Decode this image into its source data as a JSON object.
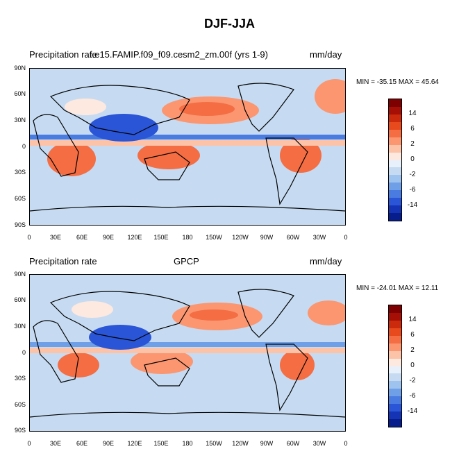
{
  "figure": {
    "title": "DJF-JJA",
    "units": "mm/day"
  },
  "panels": [
    {
      "left_title": "Precipitation rate",
      "center_title": "f.e15.FAMIP.f09_f09.cesm2_zm.00f (yrs 1-9)",
      "right_title": "mm/day",
      "min_max": "MIN = -35.15 MAX =  45.64"
    },
    {
      "left_title": "Precipitation rate",
      "center_title": "GPCP",
      "right_title": "mm/day",
      "min_max": "MIN = -24.01 MAX =  12.11"
    }
  ],
  "axes": {
    "lat_labels": [
      "90N",
      "60N",
      "30N",
      "0",
      "30S",
      "60S",
      "90S"
    ],
    "lon_labels": [
      "0",
      "30E",
      "60E",
      "90E",
      "120E",
      "150E",
      "180",
      "150W",
      "120W",
      "90W",
      "60W",
      "30W",
      "0"
    ]
  },
  "colorbar": {
    "tick_labels": [
      "14",
      "6",
      "2",
      "0",
      "-2",
      "-6",
      "-14"
    ],
    "colors": [
      "#7f0000",
      "#a50f06",
      "#cc2a0c",
      "#e8491d",
      "#f46d43",
      "#fb9670",
      "#fdc3a8",
      "#fde9df",
      "#e8f1fb",
      "#c6dbf2",
      "#9ec3ee",
      "#6f9fe6",
      "#4a7be0",
      "#2a55d6",
      "#1533b5",
      "#081d8c"
    ]
  }
}
